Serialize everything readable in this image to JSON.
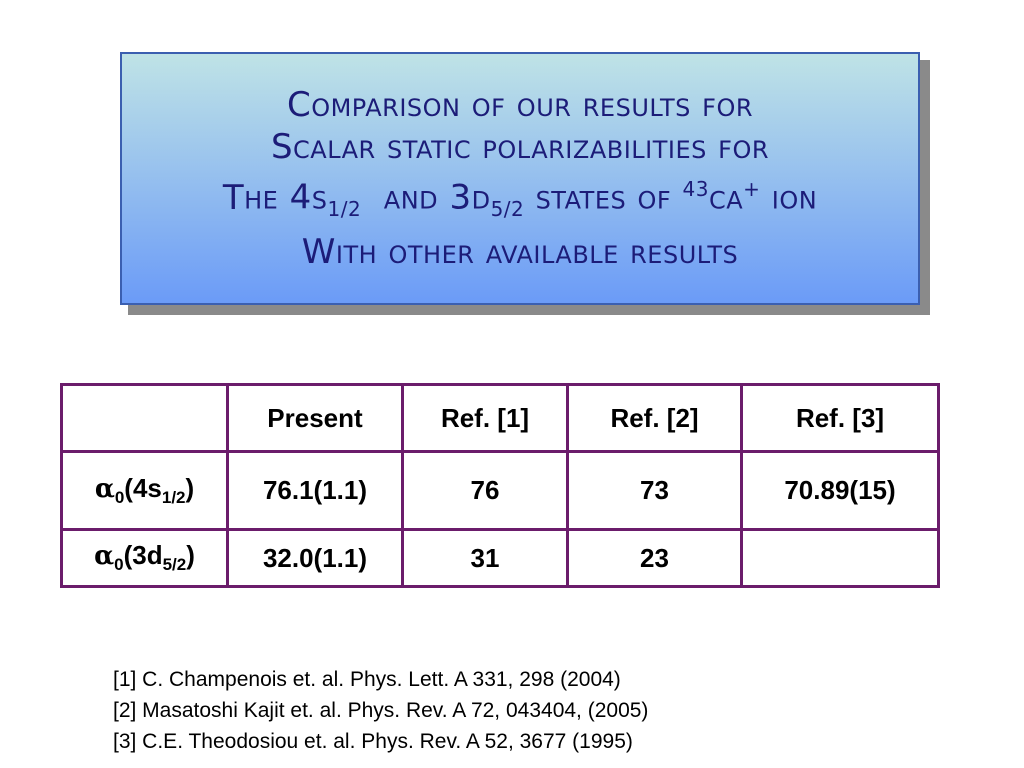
{
  "title": {
    "lines": [
      [
        "Comparison of our results for"
      ],
      [
        "scalar static polarizabilities for"
      ],
      [
        "the 4S",
        "1/2",
        "  and 3D",
        "5/2",
        " states of ",
        "43",
        "Ca",
        "+",
        " ion"
      ],
      [
        "with other available results"
      ]
    ]
  },
  "table": {
    "header": [
      null,
      "Present",
      "Ref. [1]",
      "Ref. [2]",
      "Ref. [3]"
    ],
    "rows": [
      {
        "label": [
          "α",
          "0",
          "(4s",
          "1/2",
          ")"
        ],
        "cells": [
          "76.1(1.1)",
          "76",
          "73",
          "70.89(15)"
        ]
      },
      {
        "label": [
          "α",
          "0",
          "(3d",
          "5/2",
          ")"
        ],
        "cells": [
          "32.0(1.1)",
          "31",
          "23",
          null
        ]
      }
    ]
  },
  "references": [
    "[1] C. Champenois et. al. Phys. Lett. A 331, 298 (2004)",
    "[2] Masatoshi Kajit et. al. Phys. Rev. A 72, 043404, (2005)",
    "[3] C.E. Theodosiou et. al. Phys. Rev. A 52, 3677 (1995)"
  ]
}
